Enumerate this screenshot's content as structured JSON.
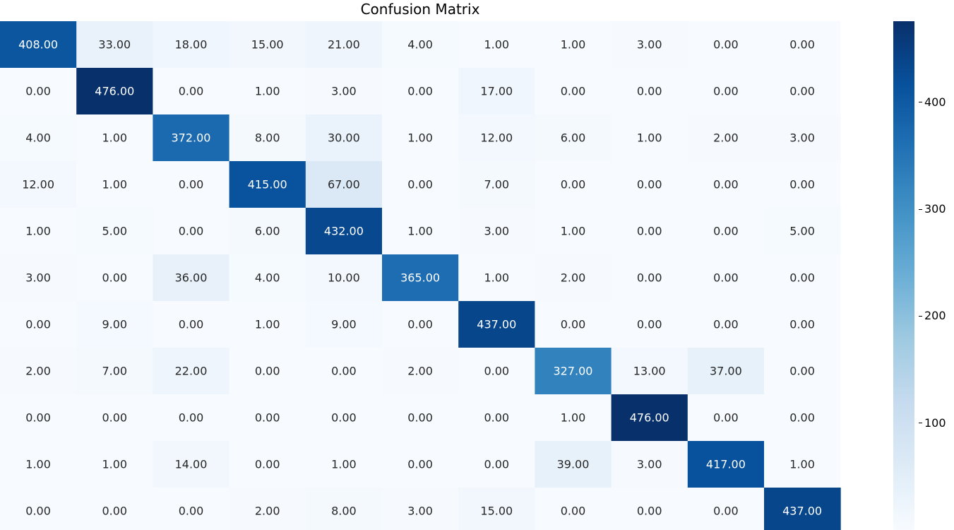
{
  "chart_data": {
    "type": "heatmap",
    "title": "Confusion Matrix",
    "xlabel": "",
    "ylabel": "",
    "value_format": "2 decimals",
    "colormap": "Blues",
    "colorbar": {
      "min": 0,
      "max": 476,
      "ticks": [
        100,
        200,
        300,
        400
      ]
    },
    "matrix": [
      [
        408,
        33,
        18,
        15,
        21,
        4,
        1,
        1,
        3,
        0,
        0
      ],
      [
        0,
        476,
        0,
        1,
        3,
        0,
        17,
        0,
        0,
        0,
        0
      ],
      [
        4,
        1,
        372,
        8,
        30,
        1,
        12,
        6,
        1,
        2,
        3
      ],
      [
        12,
        1,
        0,
        415,
        67,
        0,
        7,
        0,
        0,
        0,
        0
      ],
      [
        1,
        5,
        0,
        6,
        432,
        1,
        3,
        1,
        0,
        0,
        5
      ],
      [
        3,
        0,
        36,
        4,
        10,
        365,
        1,
        2,
        0,
        0,
        0
      ],
      [
        0,
        9,
        0,
        1,
        9,
        0,
        437,
        0,
        0,
        0,
        0
      ],
      [
        2,
        7,
        22,
        0,
        0,
        2,
        0,
        327,
        13,
        37,
        0
      ],
      [
        0,
        0,
        0,
        0,
        0,
        0,
        0,
        1,
        476,
        0,
        0
      ],
      [
        1,
        1,
        14,
        0,
        1,
        0,
        0,
        39,
        3,
        417,
        1
      ],
      [
        0,
        0,
        0,
        2,
        8,
        3,
        15,
        0,
        0,
        0,
        437
      ]
    ]
  }
}
